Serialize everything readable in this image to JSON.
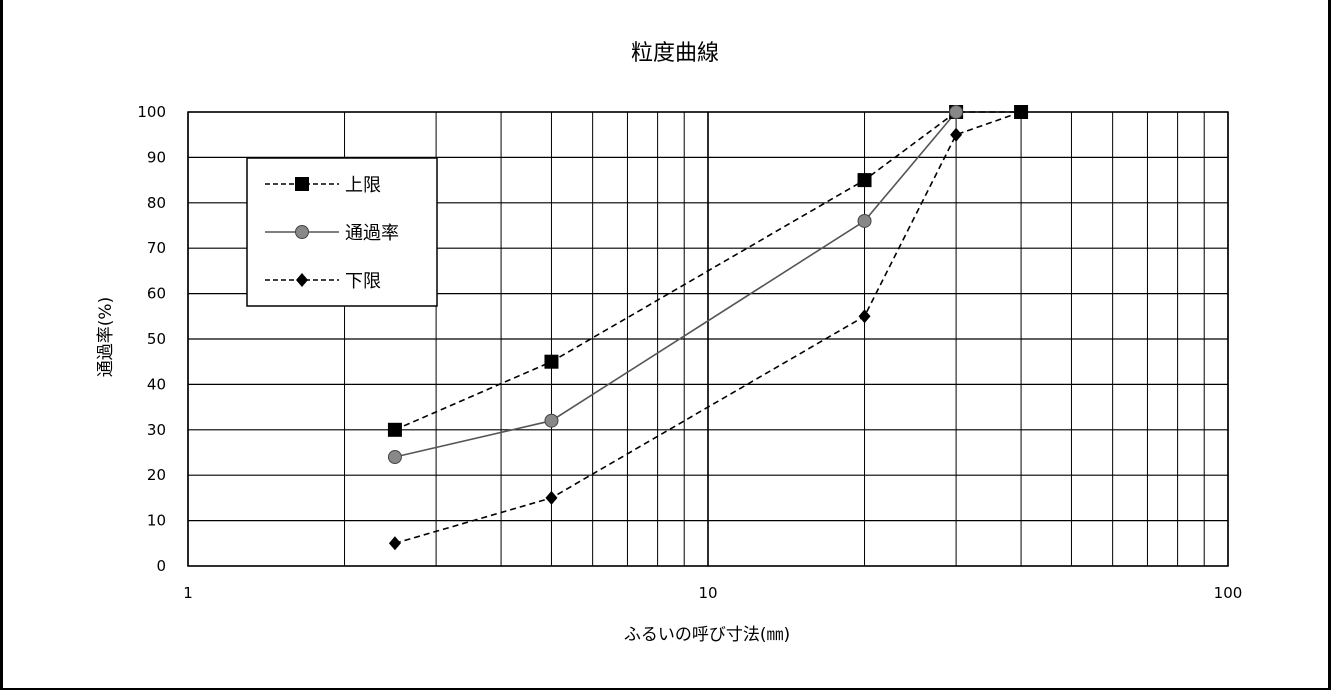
{
  "chart_data": {
    "type": "line",
    "title": "粒度曲線",
    "xlabel": "ふるいの呼び寸法(㎜)",
    "ylabel": "通過率(%)",
    "x_scale": "log",
    "xlim": [
      1,
      100
    ],
    "ylim": [
      0,
      100
    ],
    "x_ticks": [
      "1",
      "10",
      "100"
    ],
    "y_ticks": [
      "0",
      "10",
      "20",
      "30",
      "40",
      "50",
      "60",
      "70",
      "80",
      "90",
      "100"
    ],
    "grid": true,
    "legend_position": "top-left",
    "series": [
      {
        "name": "上限",
        "x": [
          2.5,
          5,
          20,
          30,
          40
        ],
        "values": [
          30,
          45,
          85,
          100,
          100
        ],
        "marker": "square",
        "line_style": "dashed",
        "color": "#000000"
      },
      {
        "name": "通過率",
        "x": [
          2.5,
          5,
          20,
          30
        ],
        "values": [
          24,
          32,
          76,
          100
        ],
        "marker": "circle",
        "line_style": "solid",
        "color": "#555555"
      },
      {
        "name": "下限",
        "x": [
          2.5,
          5,
          20,
          30,
          40
        ],
        "values": [
          5,
          15,
          55,
          95,
          100
        ],
        "marker": "diamond",
        "line_style": "dashed",
        "color": "#000000"
      }
    ]
  }
}
